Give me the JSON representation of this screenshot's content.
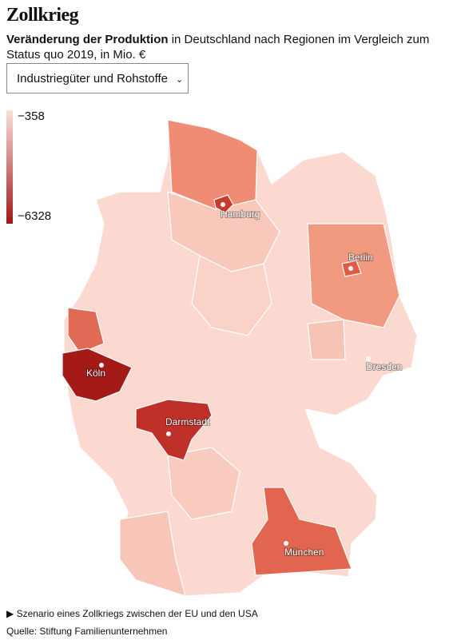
{
  "header": {
    "title": "Zollkrieg",
    "subtitle_bold": "Veränderung der Produktion",
    "subtitle_rest": " in Deutschland nach Regionen im Vergleich zum Status quo 2019, in Mio. €"
  },
  "dropdown": {
    "selected": "Industriegüter und Rohstoffe"
  },
  "legend": {
    "min_label": "−358",
    "max_label": "−6328"
  },
  "cities": [
    "Hamburg",
    "Berlin",
    "Köln",
    "Darmstadt",
    "Dresden",
    "München"
  ],
  "footer": {
    "note": "Szenario eines Zollkriegs zwischen der EU und den USA",
    "source": "Quelle: Stiftung Familienunternehmen"
  }
}
